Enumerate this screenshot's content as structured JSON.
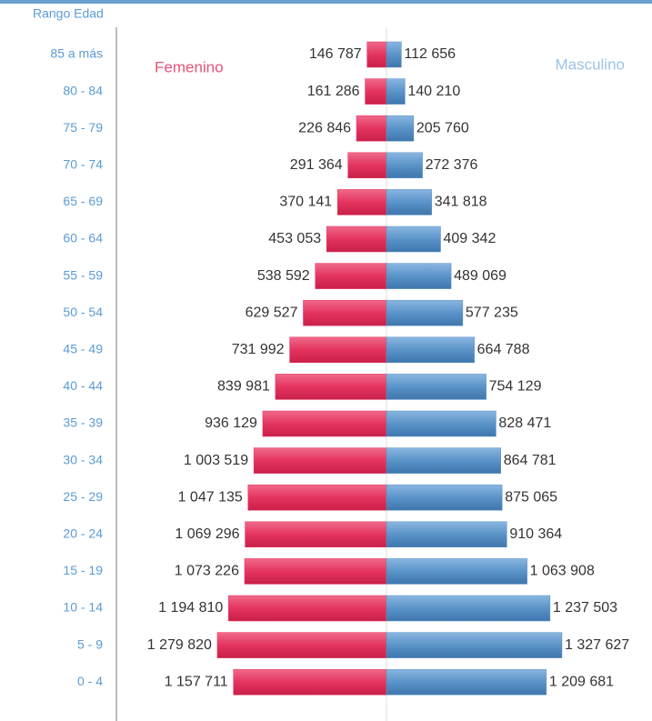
{
  "chart_data": {
    "type": "bar",
    "y_label": "Rango Edad",
    "categories": [
      "85 a más",
      "80 - 84",
      "75 - 79",
      "70 - 74",
      "65 - 69",
      "60 - 64",
      "55 - 59",
      "50 - 54",
      "45 - 49",
      "40 - 44",
      "35 - 39",
      "30 - 34",
      "25 - 29",
      "20 - 24",
      "15 - 19",
      "10 - 14",
      "5 - 9",
      "0 - 4"
    ],
    "series": [
      {
        "name": "Femenino",
        "color": "#e4345f",
        "values": [
          146787,
          161286,
          226846,
          291364,
          370141,
          453053,
          538592,
          629527,
          731992,
          839981,
          936129,
          1003519,
          1047135,
          1069296,
          1073226,
          1194810,
          1279820,
          1157711
        ],
        "value_labels": [
          "146 787",
          "161 286",
          "226 846",
          "291 364",
          "370 141",
          "453 053",
          "538 592",
          "629 527",
          "731 992",
          "839 981",
          "936 129",
          "1 003 519",
          "1 047 135",
          "1 069 296",
          "1 073 226",
          "1 194 810",
          "1 279 820",
          "1 157 711"
        ]
      },
      {
        "name": "Masculino",
        "color": "#5a93c8",
        "values": [
          112656,
          140210,
          205760,
          272376,
          341818,
          409342,
          489069,
          577235,
          664788,
          754129,
          828471,
          864781,
          875065,
          910364,
          1063908,
          1237503,
          1327627,
          1209681
        ],
        "value_labels": [
          "112 656",
          "140 210",
          "205 760",
          "272 376",
          "341 818",
          "409 342",
          "489 069",
          "577 235",
          "664 788",
          "754 129",
          "828 471",
          "864 781",
          "875 065",
          "910 364",
          "1 063 908",
          "1 237 503",
          "1 327 627",
          "1 209 681"
        ]
      }
    ]
  }
}
